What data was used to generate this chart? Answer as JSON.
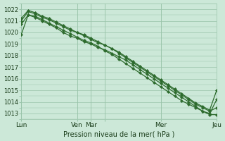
{
  "background_color": "#cce8d8",
  "grid_color": "#99c4aa",
  "line_color": "#2d6b2d",
  "xlabel": "Pression niveau de la mer( hPa )",
  "ylim": [
    1012.5,
    1022.5
  ],
  "yticks": [
    1013,
    1014,
    1015,
    1016,
    1017,
    1018,
    1019,
    1020,
    1021,
    1022
  ],
  "xlim": [
    0,
    168
  ],
  "day_positions": [
    0,
    48,
    60,
    72,
    120,
    168
  ],
  "day_labels": [
    "Lun",
    "Ven",
    "Mar",
    "",
    "Mer",
    "Jeu"
  ],
  "series": [
    {
      "x": [
        0,
        6,
        12,
        18,
        24,
        30,
        36,
        42,
        48,
        54,
        60,
        66,
        72,
        78,
        84,
        90,
        96,
        102,
        108,
        114,
        120,
        126,
        132,
        138,
        144,
        150,
        156,
        162,
        168
      ],
      "y": [
        1019.8,
        1021.5,
        1021.3,
        1021.0,
        1020.7,
        1020.4,
        1020.0,
        1019.7,
        1019.5,
        1019.2,
        1019.0,
        1018.7,
        1018.5,
        1018.2,
        1017.9,
        1017.6,
        1017.2,
        1016.8,
        1016.4,
        1016.0,
        1015.6,
        1015.2,
        1014.8,
        1014.4,
        1014.0,
        1013.6,
        1013.2,
        1012.9,
        1012.9
      ]
    },
    {
      "x": [
        0,
        6,
        12,
        18,
        24,
        30,
        36,
        42,
        48,
        54,
        60,
        66,
        72,
        78,
        84,
        90,
        96,
        102,
        108,
        114,
        120,
        126,
        132,
        138,
        144,
        150,
        156,
        162,
        168
      ],
      "y": [
        1021.0,
        1021.8,
        1021.6,
        1021.3,
        1021.1,
        1020.8,
        1020.5,
        1020.2,
        1020.0,
        1019.7,
        1019.4,
        1019.1,
        1018.9,
        1018.6,
        1018.2,
        1017.8,
        1017.4,
        1017.0,
        1016.6,
        1016.2,
        1015.8,
        1015.4,
        1015.0,
        1014.6,
        1014.2,
        1013.8,
        1013.5,
        1013.2,
        1013.5
      ]
    },
    {
      "x": [
        0,
        6,
        12,
        18,
        24,
        30,
        36,
        42,
        48,
        54,
        60,
        66,
        72,
        78,
        84,
        90,
        96,
        102,
        108,
        114,
        120,
        126,
        132,
        138,
        144,
        150,
        156,
        162,
        168
      ],
      "y": [
        1021.2,
        1021.9,
        1021.7,
        1021.4,
        1021.2,
        1020.9,
        1020.6,
        1020.3,
        1020.0,
        1019.8,
        1019.5,
        1019.2,
        1018.9,
        1018.6,
        1018.3,
        1017.9,
        1017.5,
        1017.1,
        1016.7,
        1016.3,
        1015.9,
        1015.5,
        1015.1,
        1014.7,
        1014.3,
        1013.9,
        1013.6,
        1013.3,
        1015.0
      ]
    },
    {
      "x": [
        0,
        6,
        12,
        18,
        24,
        30,
        36,
        42,
        48,
        54,
        60,
        66,
        72,
        78,
        84,
        90,
        96,
        102,
        108,
        114,
        120,
        126,
        132,
        138,
        144,
        150,
        156,
        162,
        168
      ],
      "y": [
        1020.7,
        1021.5,
        1021.4,
        1021.1,
        1020.8,
        1020.5,
        1020.2,
        1019.9,
        1019.6,
        1019.3,
        1019.1,
        1018.8,
        1018.4,
        1018.1,
        1017.7,
        1017.3,
        1016.9,
        1016.5,
        1016.1,
        1015.7,
        1015.3,
        1014.9,
        1014.5,
        1014.1,
        1013.8,
        1013.5,
        1013.2,
        1013.0,
        1014.2
      ]
    }
  ]
}
